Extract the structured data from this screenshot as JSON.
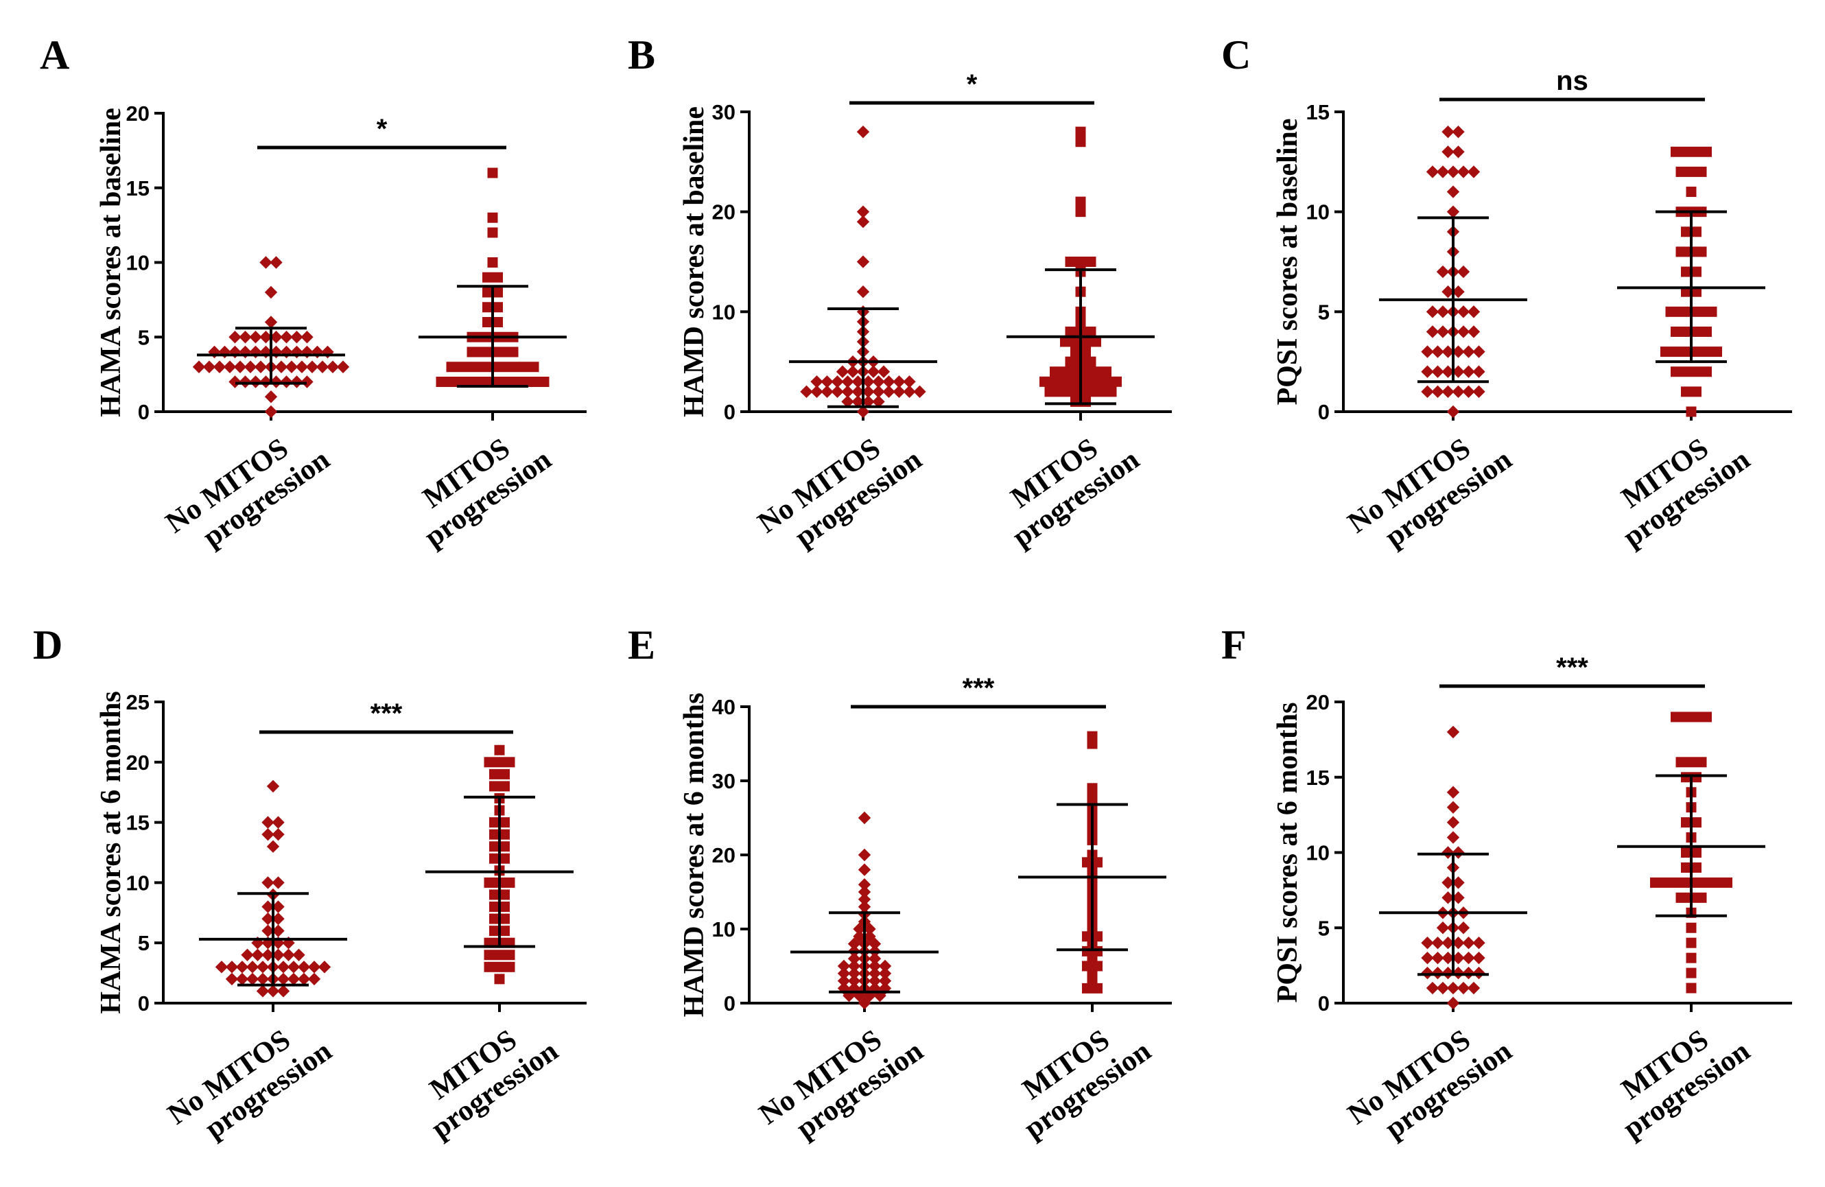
{
  "figure": {
    "marker_color": "#A50F0F",
    "line_color": "#000000"
  },
  "chart_data": [
    {
      "panel": "A",
      "type": "scatter",
      "ylabel": "HAMA scores at baseline",
      "ylim": [
        0,
        20
      ],
      "yticks": [
        0,
        5,
        10,
        15,
        20
      ],
      "categories": [
        "No MITOS progression",
        "MITOS progression"
      ],
      "significance": "*",
      "series": [
        {
          "name": "No MITOS progression",
          "marker": "diamond",
          "mean": 3.8,
          "sd_low": 1.9,
          "sd_high": 5.6,
          "values": [
            10,
            10,
            8,
            6,
            5,
            5,
            5,
            5,
            5,
            5,
            5,
            5,
            4,
            4,
            4,
            4,
            4,
            4,
            4,
            4,
            4,
            4,
            4,
            4,
            3,
            3,
            3,
            3,
            3,
            3,
            3,
            3,
            3,
            3,
            3,
            3,
            3,
            3,
            3,
            2,
            2,
            2,
            2,
            2,
            2,
            2,
            2,
            1,
            0
          ]
        },
        {
          "name": "MITOS progression",
          "marker": "square",
          "mean": 5.0,
          "sd_low": 1.7,
          "sd_high": 8.4,
          "values": [
            16,
            13,
            12,
            10,
            9,
            9,
            8,
            8,
            7,
            7,
            6,
            6,
            5,
            5,
            5,
            5,
            5,
            4,
            4,
            4,
            4,
            4,
            3,
            3,
            3,
            3,
            3,
            3,
            3,
            3,
            3,
            2,
            2,
            2,
            2,
            2,
            2,
            2,
            2,
            2,
            2,
            2
          ]
        }
      ]
    },
    {
      "panel": "B",
      "type": "scatter",
      "ylabel": "HAMD scores at baseline",
      "ylim": [
        0,
        30
      ],
      "yticks": [
        0,
        10,
        20,
        30
      ],
      "categories": [
        "No MITOS progression",
        "MITOS progression"
      ],
      "significance": "*",
      "series": [
        {
          "name": "No MITOS progression",
          "marker": "diamond",
          "mean": 5.0,
          "sd_low": 0.5,
          "sd_high": 10.3,
          "values": [
            28,
            20,
            19,
            15,
            12,
            10,
            9,
            8,
            7,
            6,
            5,
            5,
            5,
            4,
            4,
            4,
            4,
            4,
            3,
            3,
            3,
            3,
            3,
            3,
            3,
            3,
            3,
            3,
            2,
            2,
            2,
            2,
            2,
            2,
            2,
            2,
            2,
            2,
            2,
            2,
            1,
            1,
            1,
            1,
            0
          ]
        },
        {
          "name": "MITOS progression",
          "marker": "square",
          "mean": 7.5,
          "sd_low": 0.8,
          "sd_high": 14.2,
          "values": [
            28,
            27,
            21,
            20,
            15,
            15,
            15,
            14,
            12,
            10,
            9,
            8,
            8,
            8,
            7,
            7,
            7,
            7,
            6,
            6,
            5,
            5,
            5,
            4,
            4,
            4,
            4,
            4,
            4,
            3,
            3,
            3,
            3,
            3,
            3,
            3,
            3,
            2,
            2,
            2,
            2,
            2,
            2,
            2,
            1,
            1
          ]
        }
      ]
    },
    {
      "panel": "C",
      "type": "scatter",
      "ylabel": "PQSI scores at baseline",
      "ylim": [
        0,
        15
      ],
      "yticks": [
        0,
        5,
        10,
        15
      ],
      "categories": [
        "No MITOS progression",
        "MITOS progression"
      ],
      "significance": "ns",
      "series": [
        {
          "name": "No MITOS progression",
          "marker": "diamond",
          "mean": 5.6,
          "sd_low": 1.5,
          "sd_high": 9.7,
          "values": [
            14,
            14,
            13,
            13,
            12,
            12,
            12,
            12,
            12,
            11,
            10,
            9,
            8,
            7,
            7,
            7,
            6,
            6,
            5,
            5,
            5,
            5,
            5,
            4,
            4,
            4,
            4,
            4,
            3,
            3,
            3,
            3,
            3,
            3,
            2,
            2,
            2,
            2,
            2,
            2,
            1,
            1,
            1,
            1,
            1,
            1,
            0
          ]
        },
        {
          "name": "MITOS progression",
          "marker": "square",
          "mean": 6.2,
          "sd_low": 2.5,
          "sd_high": 10.0,
          "values": [
            13,
            13,
            13,
            13,
            12,
            12,
            12,
            11,
            10,
            10,
            10,
            9,
            9,
            8,
            8,
            8,
            7,
            7,
            6,
            6,
            5,
            5,
            5,
            5,
            5,
            4,
            4,
            4,
            4,
            3,
            3,
            3,
            3,
            3,
            3,
            2,
            2,
            2,
            2,
            1,
            1,
            0
          ]
        }
      ]
    },
    {
      "panel": "D",
      "type": "scatter",
      "ylabel": "HAMA scores at 6 months",
      "ylim": [
        0,
        25
      ],
      "yticks": [
        0,
        5,
        10,
        15,
        20,
        25
      ],
      "categories": [
        "No MITOS progression",
        "MITOS progression"
      ],
      "significance": "***",
      "series": [
        {
          "name": "No MITOS progression",
          "marker": "diamond",
          "mean": 5.3,
          "sd_low": 1.5,
          "sd_high": 9.1,
          "values": [
            18,
            15,
            15,
            14,
            14,
            13,
            10,
            10,
            9,
            8,
            8,
            7,
            7,
            6,
            6,
            5,
            5,
            5,
            5,
            4,
            4,
            4,
            4,
            4,
            4,
            3,
            3,
            3,
            3,
            3,
            3,
            3,
            3,
            3,
            3,
            3,
            2,
            2,
            2,
            2,
            2,
            2,
            2,
            2,
            2,
            1,
            1,
            1
          ]
        },
        {
          "name": "MITOS progression",
          "marker": "square",
          "mean": 10.9,
          "sd_low": 4.7,
          "sd_high": 17.1,
          "values": [
            21,
            20,
            20,
            20,
            19,
            19,
            18,
            18,
            17,
            16,
            15,
            15,
            14,
            14,
            13,
            13,
            12,
            12,
            11,
            10,
            10,
            10,
            9,
            9,
            8,
            8,
            7,
            7,
            6,
            6,
            5,
            5,
            5,
            4,
            4,
            4,
            3,
            3,
            3,
            2
          ]
        }
      ]
    },
    {
      "panel": "E",
      "type": "scatter",
      "ylabel": "HAMD scores at 6 months",
      "ylim": [
        0,
        40
      ],
      "yticks": [
        0,
        10,
        20,
        30,
        40
      ],
      "categories": [
        "No MITOS progression",
        "MITOS progression"
      ],
      "significance": "***",
      "series": [
        {
          "name": "No MITOS progression",
          "marker": "diamond",
          "mean": 6.9,
          "sd_low": 1.5,
          "sd_high": 12.2,
          "values": [
            25,
            20,
            18,
            16,
            15,
            14,
            13,
            12,
            11,
            10,
            10,
            9,
            9,
            8,
            8,
            8,
            7,
            7,
            7,
            6,
            6,
            6,
            5,
            5,
            5,
            5,
            5,
            4,
            4,
            4,
            4,
            4,
            3,
            3,
            3,
            3,
            3,
            2,
            2,
            2,
            2,
            2,
            1,
            1,
            1,
            1,
            0
          ]
        },
        {
          "name": "MITOS progression",
          "marker": "square",
          "mean": 17.0,
          "sd_low": 7.2,
          "sd_high": 26.8,
          "values": [
            36,
            35,
            29,
            28,
            27,
            26,
            25,
            24,
            23,
            22,
            20,
            19,
            19,
            18,
            17,
            16,
            15,
            14,
            13,
            12,
            11,
            10,
            9,
            9,
            8,
            7,
            7,
            6,
            5,
            5,
            4,
            3,
            2,
            2
          ]
        }
      ]
    },
    {
      "panel": "F",
      "type": "scatter",
      "ylabel": "PQSI scores at 6 months",
      "ylim": [
        0,
        20
      ],
      "yticks": [
        0,
        5,
        10,
        15,
        20
      ],
      "categories": [
        "No MITOS progression",
        "MITOS progression"
      ],
      "significance": "***",
      "series": [
        {
          "name": "No MITOS progression",
          "marker": "diamond",
          "mean": 6.0,
          "sd_low": 1.9,
          "sd_high": 9.9,
          "values": [
            18,
            14,
            13,
            12,
            11,
            10,
            10,
            9,
            8,
            8,
            7,
            7,
            6,
            6,
            6,
            5,
            5,
            5,
            4,
            4,
            4,
            4,
            4,
            4,
            3,
            3,
            3,
            3,
            3,
            3,
            2,
            2,
            2,
            2,
            2,
            2,
            1,
            1,
            1,
            1,
            1,
            0
          ]
        },
        {
          "name": "MITOS progression",
          "marker": "square",
          "mean": 10.4,
          "sd_low": 5.8,
          "sd_high": 15.1,
          "values": [
            19,
            19,
            19,
            19,
            16,
            16,
            16,
            15,
            15,
            14,
            13,
            12,
            12,
            11,
            10,
            10,
            9,
            9,
            8,
            8,
            8,
            8,
            8,
            8,
            8,
            8,
            7,
            7,
            7,
            6,
            5,
            4,
            3,
            2,
            1
          ]
        }
      ]
    }
  ]
}
